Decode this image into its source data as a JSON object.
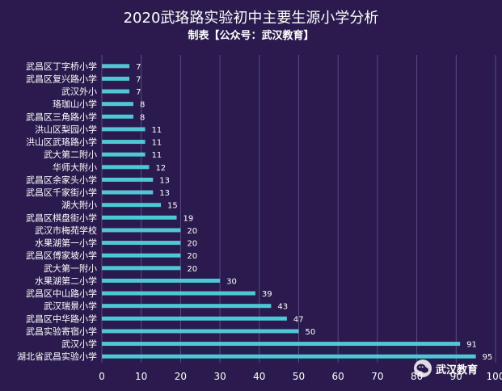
{
  "title": "2020武珞路实验初中主要生源小学分析",
  "subtitle": "制表【公众号：武汉教育】",
  "watermark": "武汉教育",
  "colors": {
    "background": "#2a1a4d",
    "bar": "#4fc7d4",
    "text": "#ffffff",
    "grid": "#5b4a87"
  },
  "chart_data": {
    "type": "bar",
    "orientation": "horizontal",
    "categories": [
      "武昌区丁字桥小学",
      "武昌区复兴路小学",
      "武汉外小",
      "珞珈山小学",
      "武昌区三角路小学",
      "洪山区梨园小学",
      "洪山区武珞路小学",
      "武大第二附小",
      "华师大附小",
      "武昌区余家头小学",
      "武昌区千家街小学",
      "湖大附小",
      "武昌区棋盘街小学",
      "武汉市梅苑学校",
      "水果湖第一小学",
      "武昌区傅家坡小学",
      "武大第一附小",
      "水果湖第二小学",
      "武昌区中山路小学",
      "武汉瑞景小学",
      "武昌区中华路小学",
      "武昌实验寄宿小学",
      "武汉小学",
      "湖北省武昌实验小学"
    ],
    "values": [
      7,
      7,
      7,
      8,
      8,
      11,
      11,
      11,
      12,
      13,
      13,
      15,
      19,
      20,
      20,
      20,
      20,
      30,
      39,
      43,
      47,
      50,
      91,
      95
    ],
    "xlim": [
      0,
      100
    ],
    "xticks": [
      0,
      10,
      20,
      30,
      40,
      50,
      60,
      70,
      80,
      90,
      100
    ],
    "grid": true,
    "data_labels": true
  }
}
